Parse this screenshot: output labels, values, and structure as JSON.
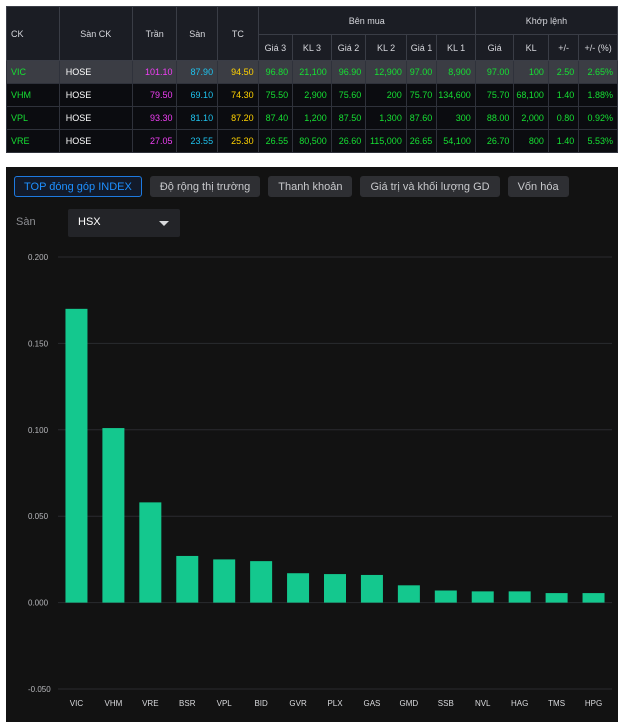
{
  "board": {
    "headers": {
      "symbol": "CK",
      "exchange": "Sàn CK",
      "ceiling": "Trần",
      "floor": "Sàn",
      "reference": "TC",
      "bid_group": "Bên mua",
      "match_group": "Khớp lệnh",
      "bid_cols": [
        "Giá 3",
        "KL 3",
        "Giá 2",
        "KL 2",
        "Giá 1",
        "KL 1"
      ],
      "match_cols": [
        "Giá",
        "KL",
        "+/-",
        "+/- (%)"
      ]
    },
    "rows": [
      {
        "symbol": "VIC",
        "exchange": "HOSE",
        "ceiling": "101.10",
        "floor": "87.90",
        "reference": "94.50",
        "p3": "96.80",
        "v3": "21,100",
        "p2": "96.90",
        "v2": "12,900",
        "p1": "97.00",
        "v1": "8,900",
        "mp": "97.00",
        "mv": "100",
        "chg": "2.50",
        "pct": "2.65%"
      },
      {
        "symbol": "VHM",
        "exchange": "HOSE",
        "ceiling": "79.50",
        "floor": "69.10",
        "reference": "74.30",
        "p3": "75.50",
        "v3": "2,900",
        "p2": "75.60",
        "v2": "200",
        "p1": "75.70",
        "v1": "134,600",
        "mp": "75.70",
        "mv": "68,100",
        "chg": "1.40",
        "pct": "1.88%"
      },
      {
        "symbol": "VPL",
        "exchange": "HOSE",
        "ceiling": "93.30",
        "floor": "81.10",
        "reference": "87.20",
        "p3": "87.40",
        "v3": "1,200",
        "p2": "87.50",
        "v2": "1,300",
        "p1": "87.60",
        "v1": "300",
        "mp": "88.00",
        "mv": "2,000",
        "chg": "0.80",
        "pct": "0.92%"
      },
      {
        "symbol": "VRE",
        "exchange": "HOSE",
        "ceiling": "27.05",
        "floor": "23.55",
        "reference": "25.30",
        "p3": "26.55",
        "v3": "80,500",
        "p2": "26.60",
        "v2": "115,000",
        "p1": "26.65",
        "v1": "54,100",
        "mp": "26.70",
        "mv": "800",
        "chg": "1.40",
        "pct": "5.53%"
      }
    ]
  },
  "tabs": [
    {
      "label": "TOP đóng góp INDEX",
      "active": true
    },
    {
      "label": "Độ rộng thị trường",
      "active": false
    },
    {
      "label": "Thanh khoản",
      "active": false
    },
    {
      "label": "Giá trị và khối lượng GD",
      "active": false
    },
    {
      "label": "Vốn hóa",
      "active": false
    }
  ],
  "filter": {
    "label": "Sàn",
    "selected": "HSX"
  },
  "colors": {
    "bar": "#14c88e",
    "grid": "#2a2b2f",
    "ceiling": "#f13ff5",
    "floor": "#1ec3ef",
    "up": "#16e033",
    "ref": "#ffd200"
  },
  "chart_data": {
    "type": "bar",
    "categories": [
      "VIC",
      "VHM",
      "VRE",
      "BSR",
      "VPL",
      "BID",
      "GVR",
      "PLX",
      "GAS",
      "GMD",
      "SSB",
      "NVL",
      "HAG",
      "TMS",
      "HPG"
    ],
    "values": [
      0.17,
      0.101,
      0.058,
      0.027,
      0.025,
      0.024,
      0.017,
      0.0165,
      0.016,
      0.01,
      0.007,
      0.0065,
      0.0065,
      0.0055,
      0.0055
    ],
    "ylim": [
      -0.05,
      0.2
    ],
    "yticks": [
      "-0.050",
      "0.000",
      "0.050",
      "0.100",
      "0.150",
      "0.200"
    ],
    "ytick_values": [
      -0.05,
      0,
      0.05,
      0.1,
      0.15,
      0.2
    ],
    "grid": true,
    "title": "",
    "xlabel": "",
    "ylabel": ""
  }
}
